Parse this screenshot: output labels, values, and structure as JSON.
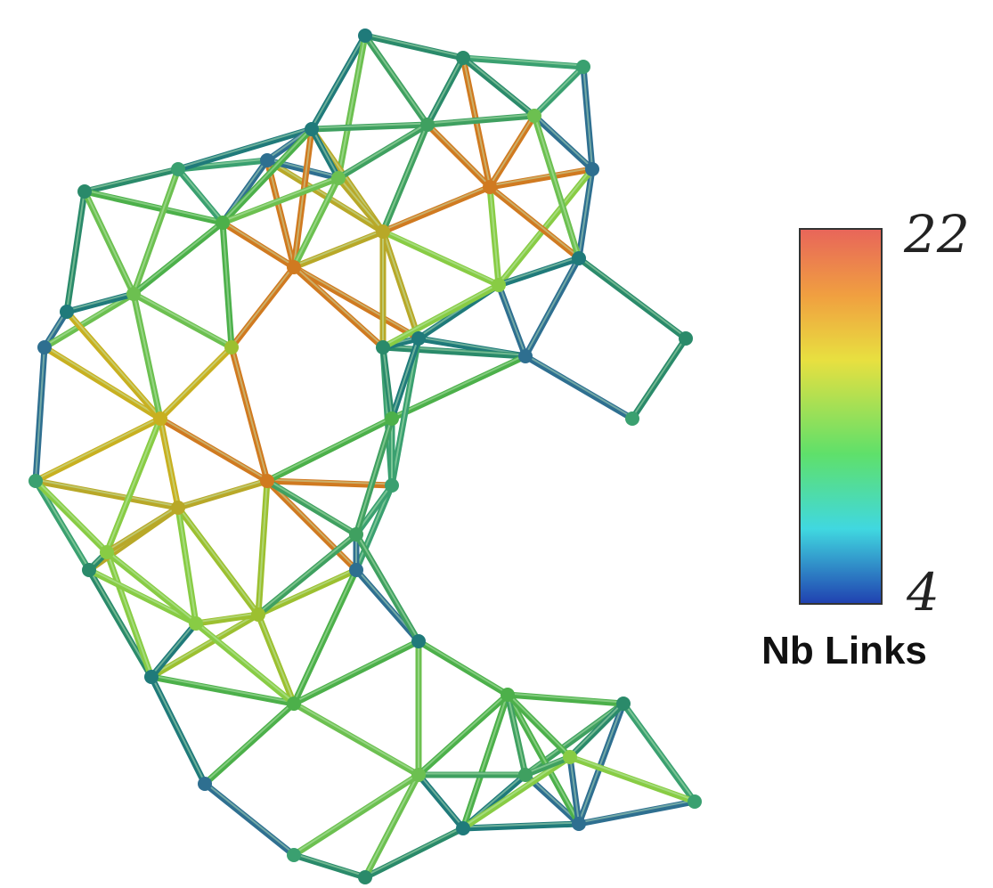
{
  "colorbar": {
    "label": "Nb Links",
    "max": "22",
    "min": "4"
  }
}
